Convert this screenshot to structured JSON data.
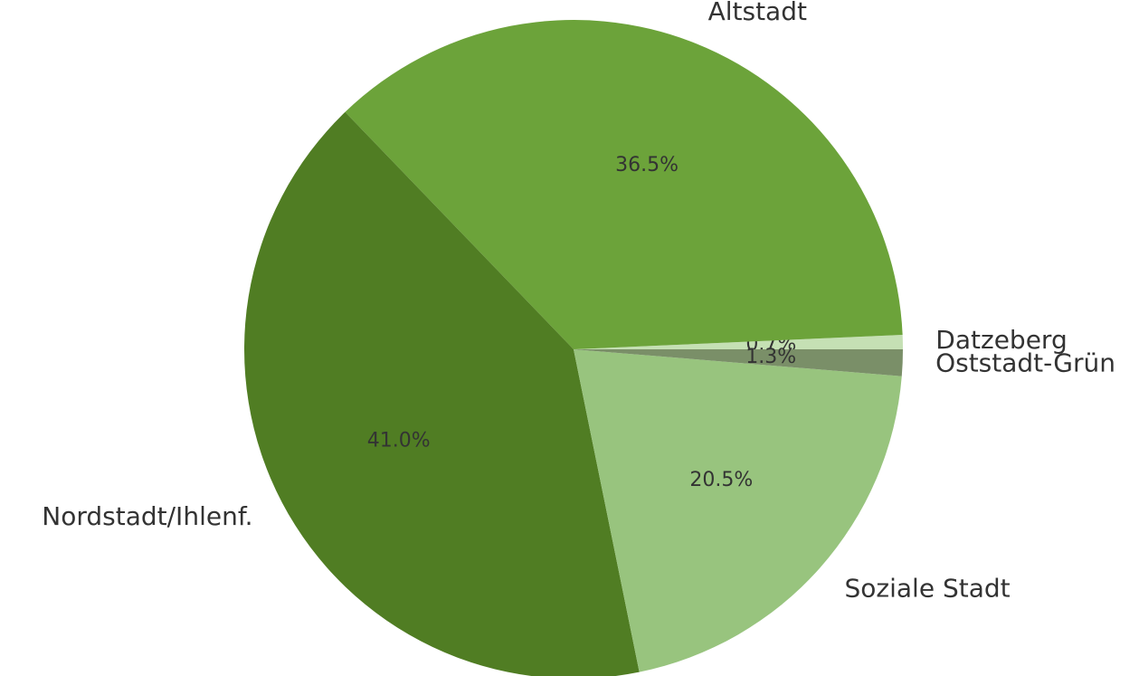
{
  "chart_data": {
    "type": "pie",
    "categories": [
      "Datzeberg",
      "Altstadt",
      "Nordstadt/Ihlenf.",
      "Soziale Stadt",
      "Oststadt-Grün"
    ],
    "values": [
      0.7,
      36.5,
      41.0,
      20.5,
      1.3
    ],
    "value_labels": [
      "0.7%",
      "36.5%",
      "41.0%",
      "20.5%",
      "1.3%"
    ],
    "colors": [
      "#c5e0b4",
      "#6ca33a",
      "#507d23",
      "#98c47e",
      "#7a8f68"
    ]
  }
}
